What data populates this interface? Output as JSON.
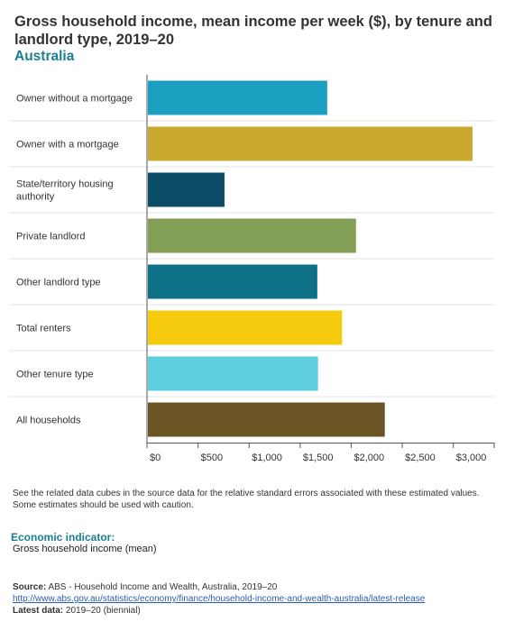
{
  "title": "Gross household income, mean income per week ($), by tenure and landlord type, 2019–20",
  "subtitle": "Australia",
  "chart_data": {
    "type": "bar",
    "orientation": "horizontal",
    "categories": [
      "Owner without a mortgage",
      "Owner with a mortgage",
      "State/territory housing authority",
      "Private landlord",
      "Other landlord type",
      "Total renters",
      "Other tenure type",
      "All households"
    ],
    "values": [
      1765,
      3188,
      759,
      2047,
      1668,
      1910,
      1675,
      2329
    ],
    "colors": [
      "#1a9fc1",
      "#c9aa2f",
      "#0b4b66",
      "#839e55",
      "#0f7188",
      "#f6cb0e",
      "#5dcedd",
      "#6b5424"
    ],
    "xticks": [
      0,
      500,
      1000,
      1500,
      2000,
      2500,
      3000
    ],
    "xtick_labels": [
      "$0",
      "$500",
      "$1,000",
      "$1,500",
      "$2,000",
      "$2,500",
      "$3,000"
    ],
    "xlim": [
      0,
      3400
    ],
    "grid": "horizontal separators",
    "legend": "none"
  },
  "note": "See the related data cubes in the source data for the relative standard errors associated with these estimated values. Some estimates should be used with caution.",
  "indicator": {
    "label": "Economic indicator:",
    "value": "Gross household income (mean)"
  },
  "source": {
    "label": "Source:",
    "text": " ABS - Household Income and Wealth, Australia, 2019–20"
  },
  "link": "http://www.abs.gov.au/statistics/economy/finance/household-income-and-wealth-australia/latest-release",
  "latest": {
    "label": "Latest data:",
    "text": " 2019–20 (biennial)"
  }
}
